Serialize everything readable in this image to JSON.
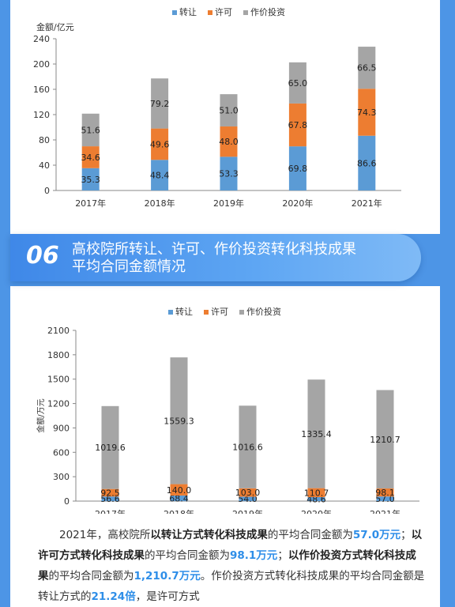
{
  "chart_data": [
    {
      "type": "bar",
      "stacked": true,
      "ylabel": "金额/亿元",
      "ylim": [
        0,
        240
      ],
      "yticks": [
        0,
        40,
        80,
        120,
        160,
        200,
        240
      ],
      "categories": [
        "2017年",
        "2018年",
        "2019年",
        "2020年",
        "2021年"
      ],
      "series": [
        {
          "name": "转让",
          "color": "#5b9bd5",
          "values": [
            35.3,
            48.4,
            53.3,
            69.8,
            86.6
          ],
          "labels": [
            "35.3",
            "48.4",
            "53.3",
            "69.8",
            "86.6"
          ]
        },
        {
          "name": "许可",
          "color": "#ed7d31",
          "values": [
            34.6,
            49.6,
            48.0,
            67.8,
            74.3
          ],
          "labels": [
            "34.6",
            "49.6",
            "48.0",
            "67.8",
            "74.3"
          ]
        },
        {
          "name": "作价投资",
          "color": "#a5a5a5",
          "values": [
            51.6,
            79.2,
            51.0,
            65.0,
            66.5
          ],
          "labels": [
            "51.6",
            "79.2",
            "51.0",
            "65.0",
            "66.5"
          ]
        }
      ],
      "legend_position": "top",
      "grid": false
    },
    {
      "type": "bar",
      "stacked": true,
      "ylabel": "金额/万元",
      "ylim": [
        0,
        2100
      ],
      "yticks": [
        0,
        300,
        600,
        900,
        1200,
        1500,
        1800,
        2100
      ],
      "categories": [
        "2017年",
        "2018年",
        "2019年",
        "2020年",
        "2021年"
      ],
      "series": [
        {
          "name": "转让",
          "color": "#5b9bd5",
          "values": [
            56.6,
            68.4,
            54.0,
            48.6,
            57.0
          ],
          "labels": [
            "56.6",
            "68.4",
            "54.0",
            "48.6",
            "57.0"
          ]
        },
        {
          "name": "许可",
          "color": "#ed7d31",
          "values": [
            92.5,
            140.0,
            103.0,
            110.7,
            98.1
          ],
          "labels": [
            "92.5",
            "140.0",
            "103.0",
            "110.7",
            "98.1"
          ]
        },
        {
          "name": "作价投资",
          "color": "#a5a5a5",
          "values": [
            1019.6,
            1559.3,
            1016.6,
            1335.4,
            1210.7
          ],
          "labels": [
            "1019.6",
            "1559.3",
            "1016.6",
            "1335.4",
            "1210.7"
          ]
        }
      ],
      "legend_position": "top",
      "grid": false
    }
  ],
  "section": {
    "number": "06",
    "title_line1": "高校院所转让、许可、作价投资转化科技成果",
    "title_line2": "平均合同金额情况"
  },
  "paragraph": {
    "t1": "2021年，高校院所",
    "t2": "以转让方式转化科技成果",
    "t3": "的平均合同金额为",
    "v1": "57.0万元",
    "t4": "；",
    "t5": "以许可方式转化科技成果",
    "t6": "的平均合同金额为",
    "v2": "98.1万元",
    "t7": "；",
    "t8": "以作价投资方式转化科技成果",
    "t9": "的平均合同金额为",
    "v3": "1,210.7万元",
    "t10": "。作价投资方式转化科技成果的平均合同金额是转让方式的",
    "v4": "21.24倍",
    "t11": "，是许可方式"
  },
  "colors": {
    "frame": "#4d95e6",
    "accent": "#2e8ee8"
  }
}
